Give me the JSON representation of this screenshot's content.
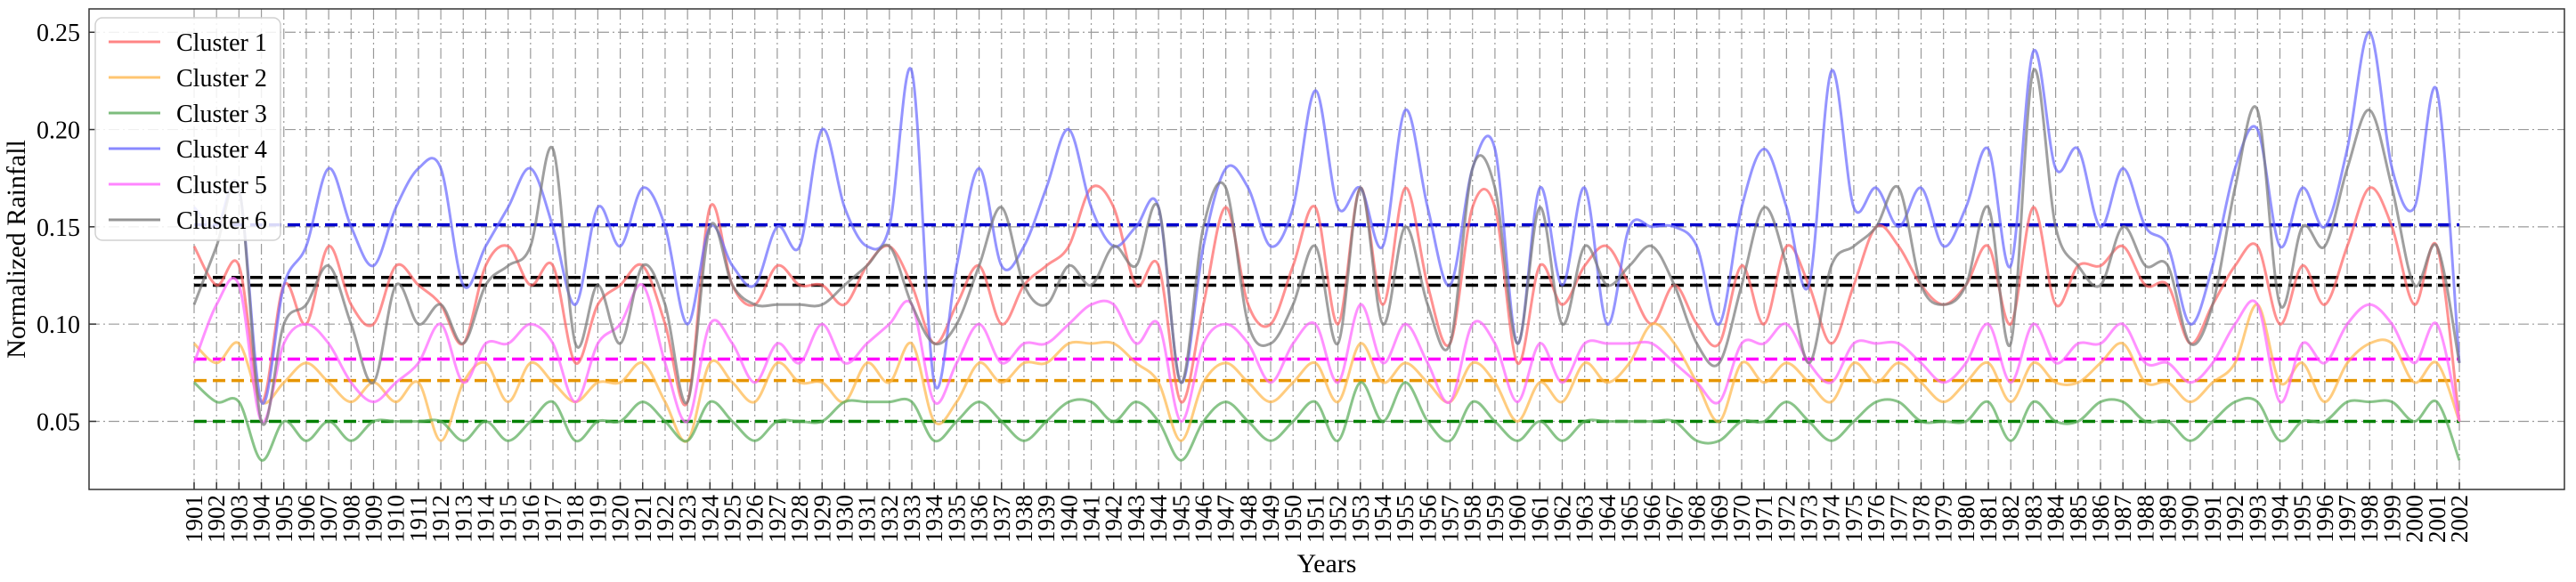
{
  "chart_data": {
    "type": "line",
    "xlabel": "Years",
    "ylabel": "Normalized Rainfall",
    "xlim": [
      1901,
      2002
    ],
    "ylim": [
      0.015,
      0.262
    ],
    "yticks": [
      0.05,
      0.1,
      0.15,
      0.2,
      0.25
    ],
    "ytick_labels": [
      "0.05",
      "0.10",
      "0.15",
      "0.20",
      "0.25"
    ],
    "xticks": [
      1901,
      1902,
      1903,
      1904,
      1905,
      1906,
      1907,
      1908,
      1909,
      1910,
      1911,
      1912,
      1913,
      1914,
      1915,
      1916,
      1917,
      1918,
      1919,
      1920,
      1921,
      1922,
      1923,
      1924,
      1925,
      1926,
      1927,
      1928,
      1929,
      1930,
      1931,
      1932,
      1933,
      1934,
      1935,
      1936,
      1937,
      1938,
      1939,
      1940,
      1941,
      1942,
      1943,
      1944,
      1945,
      1946,
      1947,
      1948,
      1949,
      1950,
      1951,
      1952,
      1953,
      1954,
      1955,
      1956,
      1957,
      1958,
      1959,
      1960,
      1961,
      1962,
      1963,
      1964,
      1965,
      1966,
      1967,
      1968,
      1969,
      1970,
      1971,
      1972,
      1973,
      1974,
      1975,
      1976,
      1977,
      1978,
      1979,
      1980,
      1981,
      1982,
      1983,
      1984,
      1985,
      1986,
      1987,
      1988,
      1989,
      1990,
      1991,
      1992,
      1993,
      1994,
      1995,
      1996,
      1997,
      1998,
      1999,
      2000,
      2001,
      2002
    ],
    "grid": "dash-dot, vertical at every year, horizontal at 0.05/0.10/0.15/0.20/0.25",
    "legend_position": "top-left",
    "series": [
      {
        "name": "Cluster 1",
        "color": "#ff6666",
        "mean": 0.124,
        "values": [
          0.14,
          0.12,
          0.13,
          0.06,
          0.12,
          0.1,
          0.14,
          0.11,
          0.1,
          0.13,
          0.12,
          0.11,
          0.09,
          0.13,
          0.14,
          0.12,
          0.13,
          0.08,
          0.11,
          0.12,
          0.13,
          0.1,
          0.06,
          0.16,
          0.12,
          0.11,
          0.13,
          0.12,
          0.12,
          0.11,
          0.13,
          0.14,
          0.12,
          0.09,
          0.11,
          0.13,
          0.1,
          0.12,
          0.13,
          0.14,
          0.17,
          0.16,
          0.12,
          0.13,
          0.06,
          0.11,
          0.16,
          0.11,
          0.1,
          0.13,
          0.16,
          0.1,
          0.17,
          0.11,
          0.17,
          0.12,
          0.09,
          0.16,
          0.16,
          0.08,
          0.13,
          0.11,
          0.13,
          0.14,
          0.12,
          0.1,
          0.12,
          0.1,
          0.09,
          0.13,
          0.1,
          0.14,
          0.12,
          0.09,
          0.12,
          0.15,
          0.14,
          0.12,
          0.11,
          0.12,
          0.14,
          0.1,
          0.16,
          0.11,
          0.13,
          0.13,
          0.14,
          0.12,
          0.12,
          0.09,
          0.11,
          0.13,
          0.14,
          0.1,
          0.13,
          0.11,
          0.14,
          0.17,
          0.15,
          0.11,
          0.14,
          0.05
        ]
      },
      {
        "name": "Cluster 2",
        "color": "#ffb84d",
        "mean": 0.071,
        "values": [
          0.09,
          0.08,
          0.09,
          0.06,
          0.07,
          0.08,
          0.07,
          0.06,
          0.07,
          0.06,
          0.07,
          0.04,
          0.07,
          0.08,
          0.06,
          0.08,
          0.07,
          0.06,
          0.07,
          0.07,
          0.08,
          0.06,
          0.04,
          0.08,
          0.07,
          0.06,
          0.08,
          0.07,
          0.07,
          0.06,
          0.08,
          0.07,
          0.09,
          0.05,
          0.06,
          0.08,
          0.07,
          0.08,
          0.08,
          0.09,
          0.09,
          0.09,
          0.08,
          0.07,
          0.04,
          0.07,
          0.08,
          0.07,
          0.06,
          0.07,
          0.08,
          0.06,
          0.09,
          0.07,
          0.08,
          0.07,
          0.06,
          0.08,
          0.07,
          0.05,
          0.07,
          0.06,
          0.08,
          0.07,
          0.08,
          0.1,
          0.09,
          0.07,
          0.05,
          0.08,
          0.07,
          0.08,
          0.07,
          0.06,
          0.08,
          0.07,
          0.08,
          0.07,
          0.06,
          0.07,
          0.08,
          0.06,
          0.08,
          0.07,
          0.07,
          0.08,
          0.09,
          0.07,
          0.07,
          0.06,
          0.07,
          0.08,
          0.11,
          0.07,
          0.08,
          0.06,
          0.08,
          0.09,
          0.09,
          0.07,
          0.08,
          0.05
        ]
      },
      {
        "name": "Cluster 3",
        "color": "#5cad5c",
        "mean": 0.05,
        "values": [
          0.07,
          0.06,
          0.06,
          0.03,
          0.05,
          0.04,
          0.05,
          0.04,
          0.05,
          0.05,
          0.05,
          0.05,
          0.04,
          0.05,
          0.04,
          0.05,
          0.06,
          0.04,
          0.05,
          0.05,
          0.06,
          0.05,
          0.04,
          0.06,
          0.05,
          0.04,
          0.05,
          0.05,
          0.05,
          0.06,
          0.06,
          0.06,
          0.06,
          0.04,
          0.05,
          0.06,
          0.05,
          0.04,
          0.05,
          0.06,
          0.06,
          0.05,
          0.06,
          0.05,
          0.03,
          0.05,
          0.06,
          0.05,
          0.04,
          0.05,
          0.06,
          0.04,
          0.07,
          0.05,
          0.07,
          0.05,
          0.04,
          0.06,
          0.05,
          0.04,
          0.05,
          0.04,
          0.05,
          0.05,
          0.05,
          0.05,
          0.05,
          0.04,
          0.04,
          0.05,
          0.05,
          0.06,
          0.05,
          0.04,
          0.05,
          0.06,
          0.06,
          0.05,
          0.05,
          0.05,
          0.06,
          0.04,
          0.06,
          0.05,
          0.05,
          0.06,
          0.06,
          0.05,
          0.05,
          0.04,
          0.05,
          0.06,
          0.06,
          0.04,
          0.05,
          0.05,
          0.06,
          0.06,
          0.06,
          0.05,
          0.06,
          0.03
        ]
      },
      {
        "name": "Cluster 4",
        "color": "#6b6bff",
        "mean": 0.151,
        "values": [
          0.16,
          0.15,
          0.17,
          0.06,
          0.12,
          0.14,
          0.18,
          0.15,
          0.13,
          0.16,
          0.18,
          0.18,
          0.12,
          0.14,
          0.16,
          0.18,
          0.15,
          0.11,
          0.16,
          0.14,
          0.17,
          0.15,
          0.1,
          0.15,
          0.13,
          0.12,
          0.15,
          0.14,
          0.2,
          0.16,
          0.14,
          0.15,
          0.23,
          0.07,
          0.13,
          0.18,
          0.13,
          0.14,
          0.17,
          0.2,
          0.16,
          0.14,
          0.15,
          0.16,
          0.07,
          0.14,
          0.18,
          0.17,
          0.14,
          0.16,
          0.22,
          0.16,
          0.17,
          0.14,
          0.21,
          0.16,
          0.12,
          0.18,
          0.19,
          0.09,
          0.17,
          0.12,
          0.17,
          0.1,
          0.15,
          0.15,
          0.15,
          0.14,
          0.1,
          0.16,
          0.19,
          0.16,
          0.12,
          0.23,
          0.16,
          0.17,
          0.15,
          0.17,
          0.14,
          0.16,
          0.19,
          0.13,
          0.24,
          0.18,
          0.19,
          0.15,
          0.18,
          0.15,
          0.14,
          0.1,
          0.13,
          0.18,
          0.2,
          0.14,
          0.17,
          0.15,
          0.19,
          0.25,
          0.18,
          0.16,
          0.22,
          0.08
        ]
      },
      {
        "name": "Cluster 5",
        "color": "#ff66ff",
        "mean": 0.082,
        "values": [
          0.08,
          0.11,
          0.12,
          0.05,
          0.09,
          0.1,
          0.09,
          0.07,
          0.06,
          0.07,
          0.08,
          0.1,
          0.07,
          0.09,
          0.09,
          0.1,
          0.09,
          0.06,
          0.09,
          0.1,
          0.12,
          0.08,
          0.05,
          0.1,
          0.09,
          0.07,
          0.09,
          0.08,
          0.1,
          0.08,
          0.09,
          0.1,
          0.11,
          0.06,
          0.08,
          0.1,
          0.08,
          0.09,
          0.09,
          0.1,
          0.11,
          0.11,
          0.09,
          0.1,
          0.05,
          0.09,
          0.1,
          0.09,
          0.07,
          0.09,
          0.1,
          0.07,
          0.11,
          0.08,
          0.1,
          0.08,
          0.06,
          0.1,
          0.09,
          0.06,
          0.09,
          0.07,
          0.09,
          0.09,
          0.09,
          0.09,
          0.08,
          0.07,
          0.06,
          0.09,
          0.09,
          0.1,
          0.08,
          0.07,
          0.09,
          0.09,
          0.09,
          0.08,
          0.07,
          0.08,
          0.1,
          0.07,
          0.1,
          0.08,
          0.09,
          0.09,
          0.1,
          0.08,
          0.08,
          0.07,
          0.08,
          0.1,
          0.11,
          0.06,
          0.09,
          0.08,
          0.1,
          0.11,
          0.1,
          0.08,
          0.1,
          0.05
        ]
      },
      {
        "name": "Cluster 6",
        "color": "#7a7a7a",
        "mean": 0.12,
        "values": [
          0.11,
          0.14,
          0.17,
          0.05,
          0.1,
          0.11,
          0.13,
          0.1,
          0.07,
          0.12,
          0.1,
          0.11,
          0.09,
          0.12,
          0.13,
          0.14,
          0.19,
          0.09,
          0.12,
          0.09,
          0.13,
          0.11,
          0.06,
          0.15,
          0.12,
          0.11,
          0.11,
          0.11,
          0.11,
          0.12,
          0.13,
          0.14,
          0.11,
          0.09,
          0.1,
          0.13,
          0.16,
          0.12,
          0.11,
          0.13,
          0.12,
          0.14,
          0.13,
          0.16,
          0.07,
          0.15,
          0.17,
          0.1,
          0.09,
          0.11,
          0.14,
          0.09,
          0.17,
          0.1,
          0.15,
          0.11,
          0.09,
          0.18,
          0.17,
          0.09,
          0.16,
          0.1,
          0.14,
          0.12,
          0.13,
          0.14,
          0.12,
          0.09,
          0.08,
          0.12,
          0.16,
          0.13,
          0.08,
          0.13,
          0.14,
          0.15,
          0.17,
          0.12,
          0.11,
          0.12,
          0.16,
          0.09,
          0.23,
          0.15,
          0.13,
          0.12,
          0.15,
          0.13,
          0.13,
          0.09,
          0.11,
          0.17,
          0.21,
          0.11,
          0.15,
          0.14,
          0.18,
          0.21,
          0.17,
          0.12,
          0.14,
          0.08
        ]
      }
    ]
  }
}
